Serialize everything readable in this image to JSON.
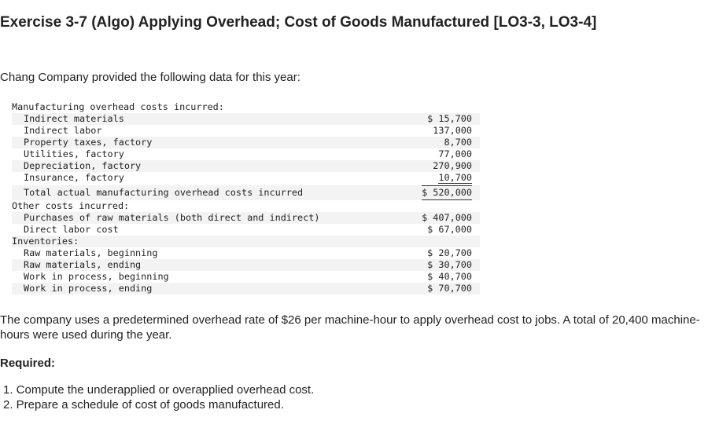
{
  "header": {
    "title": "Exercise 3-7 (Algo) Applying Overhead; Cost of Goods Manufactured [LO3-3, LO3-4]"
  },
  "intro": "Chang Company provided the following data for this year:",
  "table": {
    "sections": [
      {
        "heading": "Manufacturing overhead costs incurred:",
        "items": [
          {
            "label": "Indirect materials",
            "amount": "$ 15,700"
          },
          {
            "label": "Indirect labor",
            "amount": "137,000"
          },
          {
            "label": "Property taxes, factory",
            "amount": "8,700"
          },
          {
            "label": "Utilities, factory",
            "amount": "77,000"
          },
          {
            "label": "Depreciation, factory",
            "amount": "270,900"
          },
          {
            "label": "Insurance, factory",
            "amount": "10,700"
          }
        ],
        "total": {
          "label": "Total actual manufacturing overhead costs incurred",
          "amount": "$ 520,000"
        }
      },
      {
        "heading": "Other costs incurred:",
        "items": [
          {
            "label": "Purchases of raw materials (both direct and indirect)",
            "amount": "$ 407,000"
          },
          {
            "label": "Direct labor cost",
            "amount": "$ 67,000"
          }
        ]
      },
      {
        "heading": "Inventories:",
        "items": [
          {
            "label": "Raw materials, beginning",
            "amount": "$ 20,700"
          },
          {
            "label": "Raw materials, ending",
            "amount": "$ 30,700"
          },
          {
            "label": "Work in process, beginning",
            "amount": "$ 40,700"
          },
          {
            "label": "Work in process, ending",
            "amount": "$ 70,700"
          }
        ]
      }
    ]
  },
  "paragraph": "The company uses a predetermined overhead rate of $26 per machine-hour to apply overhead cost to jobs. A total of 20,400 machine-hours were used during the year.",
  "required": {
    "heading": "Required:",
    "items": [
      "1. Compute the underapplied or overapplied overhead cost.",
      "2. Prepare a schedule of cost of goods manufactured."
    ]
  }
}
